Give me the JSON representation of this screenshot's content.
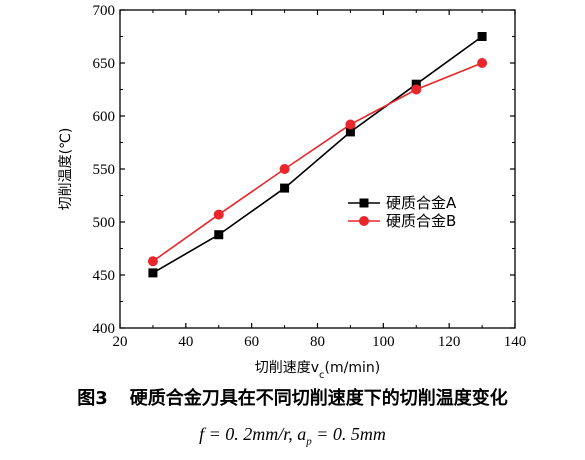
{
  "chart_data": {
    "type": "line",
    "title": "",
    "xlabel": "切削速度v",
    "xlabel_sub": "c",
    "xlabel_unit": "(m/min)",
    "ylabel": "切削温度(℃)",
    "xlim": [
      20,
      140
    ],
    "ylim": [
      400,
      700
    ],
    "xticks": [
      20,
      40,
      60,
      80,
      100,
      120,
      140
    ],
    "yticks": [
      400,
      450,
      500,
      550,
      600,
      650,
      700
    ],
    "grid": false,
    "legend_position": "center-right",
    "series": [
      {
        "name": "硬质合金A",
        "color": "#000000",
        "marker": "square",
        "x": [
          30,
          50,
          70,
          90,
          110,
          130
        ],
        "y": [
          452,
          488,
          532,
          585,
          630,
          675
        ]
      },
      {
        "name": "硬质合金B",
        "color": "#e8262b",
        "marker": "circle",
        "x": [
          30,
          50,
          70,
          90,
          110,
          130
        ],
        "y": [
          463,
          507,
          550,
          592,
          625,
          650
        ]
      }
    ]
  },
  "caption": {
    "figure_no": "图3",
    "text": "硬质合金刀具在不同切削速度下的切削温度变化"
  },
  "condition": {
    "text": "f = 0. 2mm/r, a",
    "sub": "p",
    "text2": " = 0. 5mm"
  }
}
